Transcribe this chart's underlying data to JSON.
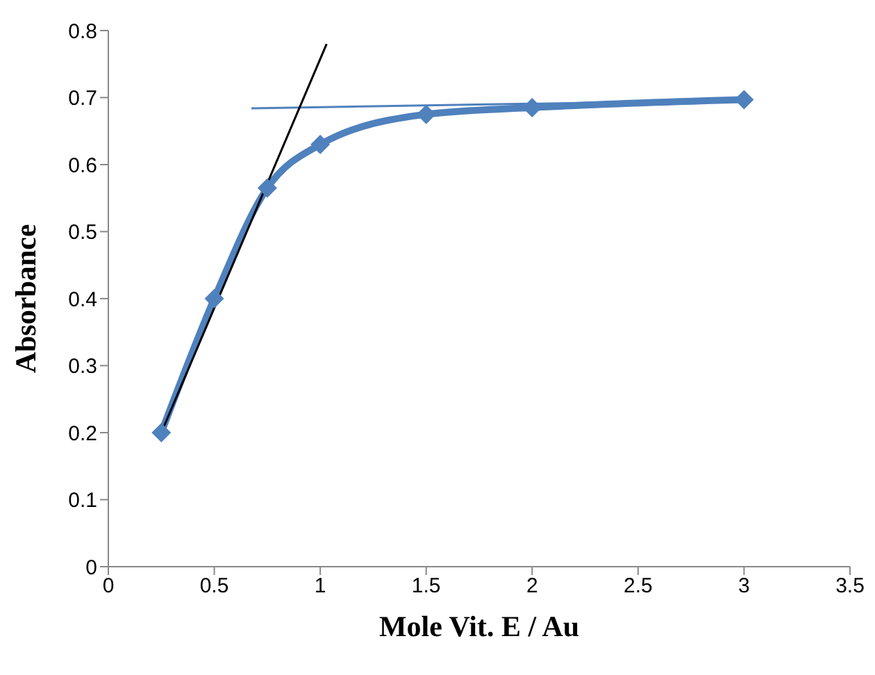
{
  "chart_data": {
    "type": "line",
    "xlabel": "Mole  Vit. E / Au",
    "ylabel": "Absorbance",
    "xlim": [
      0,
      3.5
    ],
    "xticks": [
      0,
      0.5,
      1,
      1.5,
      2,
      2.5,
      3,
      3.5
    ],
    "ylim": [
      0,
      0.8
    ],
    "yticks": [
      0,
      0.1,
      0.2,
      0.3,
      0.4,
      0.5,
      0.6,
      0.7,
      0.8
    ],
    "series": [
      {
        "color": "#4f81bd",
        "x": [
          0.25,
          0.5,
          0.75,
          1,
          1.5,
          2,
          3
        ],
        "values": [
          0.2,
          0.4,
          0.565,
          0.63,
          0.675,
          0.685,
          0.697
        ],
        "marker": "diamond",
        "line_style": "solid"
      },
      {
        "color": "#4f81bd",
        "x": [
          0.675,
          2.99
        ],
        "values": [
          0.684,
          0.696
        ],
        "marker": "none",
        "line_style": "solid"
      },
      {
        "color": "#000000",
        "x": [
          0.25,
          1.03
        ],
        "values": [
          0.2,
          0.78
        ],
        "marker": "none",
        "line_style": "solid"
      }
    ]
  }
}
